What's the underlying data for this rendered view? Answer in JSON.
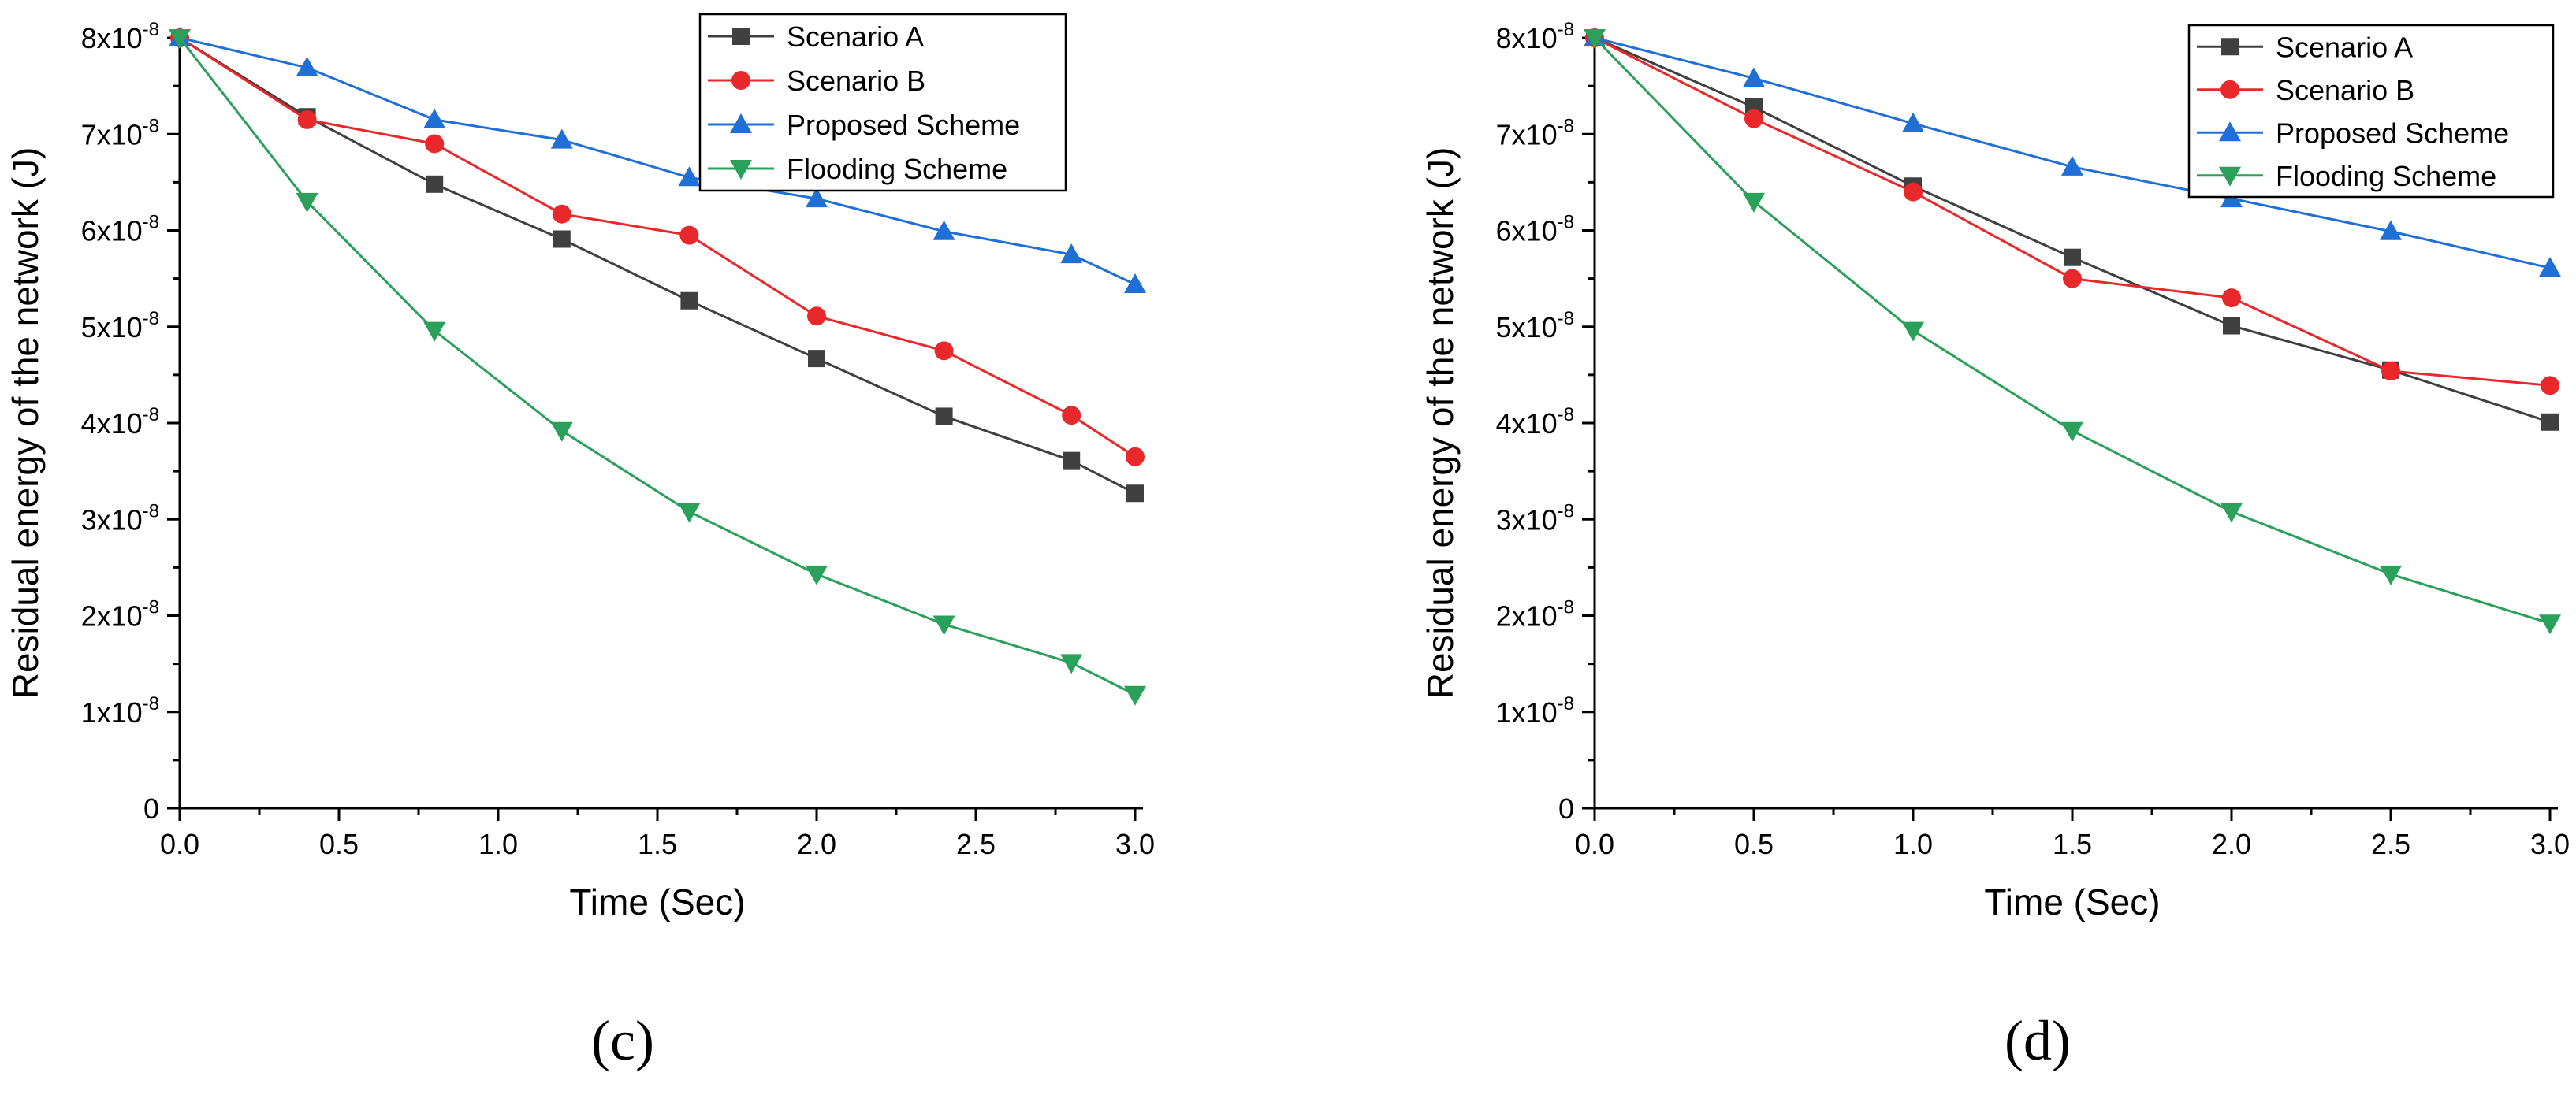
{
  "chart_data": [
    {
      "type": "line",
      "panel_label": "(c)",
      "xlabel": "Time (Sec)",
      "ylabel": "Residual energy of the network (J)",
      "xlim": [
        0,
        3.0
      ],
      "ylim": [
        0,
        8e-08
      ],
      "x_ticks": [
        "0.0",
        "0.5",
        "1.0",
        "1.5",
        "2.0",
        "2.5",
        "3.0"
      ],
      "y_ticks": [
        {
          "mantissa": "0",
          "exp": ""
        },
        {
          "mantissa": "1x10",
          "exp": "-8"
        },
        {
          "mantissa": "2x10",
          "exp": "-8"
        },
        {
          "mantissa": "3x10",
          "exp": "-8"
        },
        {
          "mantissa": "4x10",
          "exp": "-8"
        },
        {
          "mantissa": "5x10",
          "exp": "-8"
        },
        {
          "mantissa": "6x10",
          "exp": "-8"
        },
        {
          "mantissa": "7x10",
          "exp": "-8"
        },
        {
          "mantissa": "8x10",
          "exp": "-8"
        }
      ],
      "legend_position": "top-right",
      "x": [
        0,
        0.4,
        0.8,
        1.2,
        1.6,
        2.0,
        2.4,
        2.8,
        3.0
      ],
      "series": [
        {
          "name": "Scenario A",
          "color": "#404040",
          "marker": "square",
          "values": [
            8e-08,
            7.18e-08,
            6.48e-08,
            5.91e-08,
            5.27e-08,
            4.67e-08,
            4.07e-08,
            3.61e-08,
            3.27e-08
          ]
        },
        {
          "name": "Scenario B",
          "color": "#e8282a",
          "marker": "circle",
          "values": [
            8e-08,
            7.15e-08,
            6.9e-08,
            6.17e-08,
            5.95e-08,
            5.11e-08,
            4.75e-08,
            4.08e-08,
            3.65e-08
          ]
        },
        {
          "name": "Proposed Scheme",
          "color": "#1f6fd6",
          "marker": "triangle-up",
          "values": [
            8e-08,
            7.69e-08,
            7.15e-08,
            6.94e-08,
            6.55e-08,
            6.33e-08,
            5.99e-08,
            5.75e-08,
            5.44e-08
          ]
        },
        {
          "name": "Flooding Scheme",
          "color": "#2aa05a",
          "marker": "triangle-down",
          "values": [
            8e-08,
            6.3e-08,
            4.96e-08,
            3.92e-08,
            3.08e-08,
            2.43e-08,
            1.91e-08,
            1.51e-08,
            1.18e-08
          ]
        }
      ]
    },
    {
      "type": "line",
      "panel_label": "(d)",
      "xlabel": "Time (Sec)",
      "ylabel": "Residual energy of the network (J)",
      "xlim": [
        0,
        3.0
      ],
      "ylim": [
        0,
        8e-08
      ],
      "x_ticks": [
        "0.0",
        "0.5",
        "1.0",
        "1.5",
        "2.0",
        "2.5",
        "3.0"
      ],
      "y_ticks": [
        {
          "mantissa": "0",
          "exp": ""
        },
        {
          "mantissa": "1x10",
          "exp": "-8"
        },
        {
          "mantissa": "2x10",
          "exp": "-8"
        },
        {
          "mantissa": "3x10",
          "exp": "-8"
        },
        {
          "mantissa": "4x10",
          "exp": "-8"
        },
        {
          "mantissa": "5x10",
          "exp": "-8"
        },
        {
          "mantissa": "6x10",
          "exp": "-8"
        },
        {
          "mantissa": "7x10",
          "exp": "-8"
        },
        {
          "mantissa": "8x10",
          "exp": "-8"
        }
      ],
      "legend_position": "top-right",
      "x": [
        0,
        0.5,
        1.0,
        1.5,
        2.0,
        2.5,
        3.0
      ],
      "series": [
        {
          "name": "Scenario A",
          "color": "#404040",
          "marker": "square",
          "values": [
            8e-08,
            7.28e-08,
            6.46e-08,
            5.72e-08,
            5.01e-08,
            4.55e-08,
            4.01e-08
          ]
        },
        {
          "name": "Scenario B",
          "color": "#e8282a",
          "marker": "circle",
          "values": [
            8e-08,
            7.16e-08,
            6.4e-08,
            5.5e-08,
            5.3e-08,
            4.54e-08,
            4.39e-08
          ]
        },
        {
          "name": "Proposed Scheme",
          "color": "#1f6fd6",
          "marker": "triangle-up",
          "values": [
            8e-08,
            7.58e-08,
            7.11e-08,
            6.66e-08,
            6.33e-08,
            5.99e-08,
            5.61e-08
          ]
        },
        {
          "name": "Flooding Scheme",
          "color": "#2aa05a",
          "marker": "triangle-down",
          "values": [
            8e-08,
            6.3e-08,
            4.96e-08,
            3.92e-08,
            3.08e-08,
            2.43e-08,
            1.92e-08
          ]
        }
      ]
    }
  ]
}
